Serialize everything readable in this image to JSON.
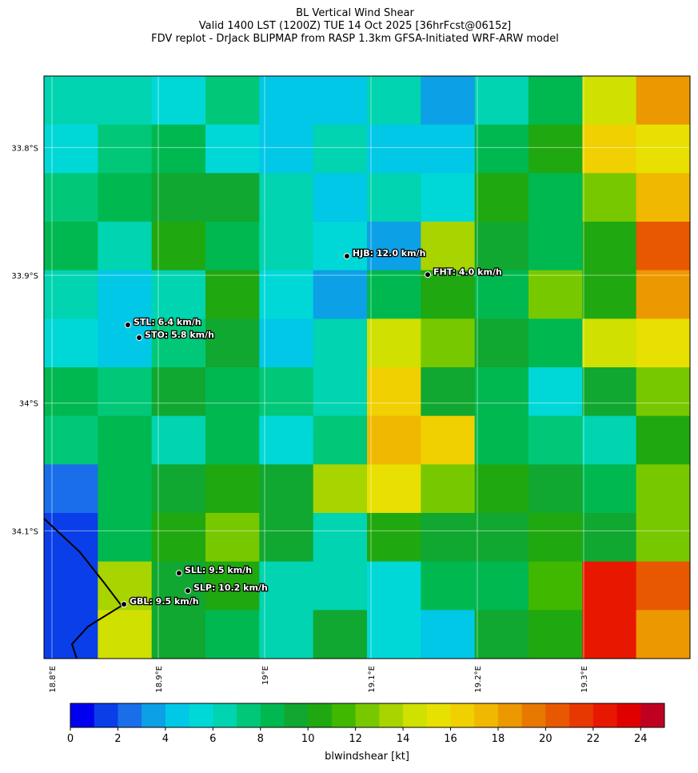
{
  "title": [
    "BL Vertical Wind Shear",
    "Valid 1400 LST (1200Z) TUE 14 Oct 2025 [36hrFcst@0615z]",
    "FDV replot - DrJack BLIPMAP from RASP 1.3km GFSA-Initiated WRF-ARW model"
  ],
  "map": {
    "lonlim": [
      18.7925,
      19.4
    ],
    "latlim": [
      33.744,
      34.2
    ],
    "lon_ticks": [
      {
        "value": 18.8,
        "label": "18.8°E"
      },
      {
        "value": 18.9,
        "label": "18.9°E"
      },
      {
        "value": 19.0,
        "label": "19°E"
      },
      {
        "value": 19.1,
        "label": "19.1°E"
      },
      {
        "value": 19.2,
        "label": "19.2°E"
      },
      {
        "value": 19.3,
        "label": "19.3°E"
      }
    ],
    "lat_ticks": [
      {
        "value": 33.8,
        "label": "33.8°S"
      },
      {
        "value": 33.9,
        "label": "33.9°S"
      },
      {
        "value": 34.0,
        "label": "34°S"
      },
      {
        "value": 34.1,
        "label": "34.1°S"
      }
    ],
    "shear_grid": [
      [
        6,
        6,
        5,
        7,
        4,
        4,
        6,
        3,
        6,
        8,
        14,
        18
      ],
      [
        5,
        7,
        8,
        5,
        4,
        6,
        4,
        4,
        8,
        10,
        16,
        15
      ],
      [
        7,
        8,
        9,
        9,
        6,
        4,
        6,
        5,
        10,
        8,
        12,
        17
      ],
      [
        8,
        6,
        10,
        8,
        6,
        5,
        3,
        13,
        9,
        8,
        10,
        20
      ],
      [
        6,
        4,
        6,
        10,
        5,
        3,
        8,
        10,
        8,
        12,
        10,
        18
      ],
      [
        5,
        4,
        7,
        9,
        4,
        6,
        14,
        12,
        9,
        8,
        14,
        15
      ],
      [
        8,
        7,
        9,
        8,
        7,
        6,
        16,
        9,
        8,
        5,
        9,
        12
      ],
      [
        7,
        8,
        6,
        8,
        5,
        7,
        17,
        16,
        8,
        7,
        6,
        10
      ],
      [
        2,
        8,
        9,
        10,
        9,
        13,
        15,
        12,
        10,
        9,
        8,
        12
      ],
      [
        1,
        8,
        10,
        12,
        9,
        6,
        10,
        9,
        9,
        10,
        9,
        12
      ],
      [
        1,
        13,
        9,
        10,
        6,
        6,
        5,
        8,
        8,
        11,
        22,
        20
      ],
      [
        1,
        14,
        9,
        8,
        6,
        9,
        5,
        4,
        9,
        10,
        22,
        18
      ]
    ],
    "stations": [
      {
        "label": "HJB: 12.0 km/h",
        "lon": 19.0774,
        "lat": 33.885
      },
      {
        "label": "FHT: 4.0 km/h",
        "lon": 19.1534,
        "lat": 33.8995
      },
      {
        "label": "STL: 6.4 km/h",
        "lon": 18.8714,
        "lat": 33.9388
      },
      {
        "label": "STO: 5.8 km/h",
        "lon": 18.882,
        "lat": 33.9488
      },
      {
        "label": "SLL: 9.5 km/h",
        "lon": 18.9195,
        "lat": 34.1331
      },
      {
        "label": "SLP: 10.2 km/h",
        "lon": 18.9278,
        "lat": 34.1469
      },
      {
        "label": "GBL: 9.5 km/h",
        "lon": 18.8677,
        "lat": 34.1575
      }
    ]
  },
  "colorbar": {
    "label": "blwindshear [kt]",
    "lim": [
      0,
      25
    ],
    "ticks": [
      0,
      2,
      4,
      6,
      8,
      10,
      12,
      14,
      16,
      18,
      20,
      22,
      24
    ],
    "colors": [
      "#0000ee",
      "#0a3ee8",
      "#1a6eea",
      "#0ca0e6",
      "#00c8e6",
      "#00d8d8",
      "#00d4b0",
      "#00c878",
      "#00b850",
      "#10a830",
      "#20a810",
      "#40b800",
      "#78c800",
      "#a8d400",
      "#d0e000",
      "#e8e000",
      "#f0d000",
      "#f0b800",
      "#ec9800",
      "#e87800",
      "#e85800",
      "#e83800",
      "#e81800",
      "#e00000",
      "#c00020"
    ]
  }
}
